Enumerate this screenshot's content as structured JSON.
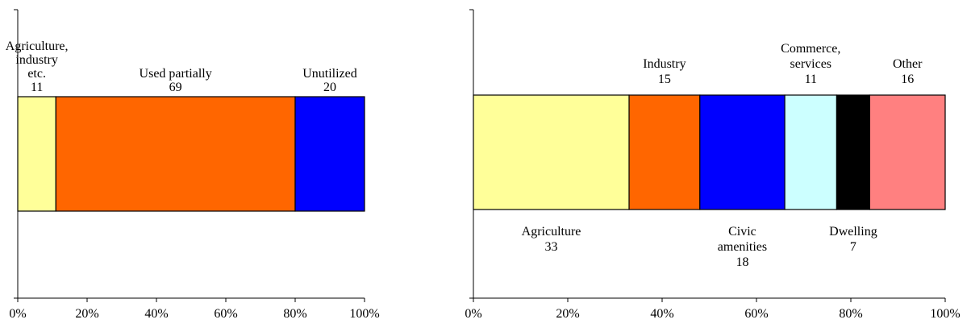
{
  "chart_data": [
    {
      "type": "bar",
      "orientation": "horizontal-stacked-100",
      "xlim": [
        0,
        100
      ],
      "xticks": [
        "0%",
        "20%",
        "40%",
        "60%",
        "80%",
        "100%"
      ],
      "segments": [
        {
          "label_lines": [
            "Agriculture,",
            "industry",
            "etc."
          ],
          "value": 11,
          "value_label": "11",
          "color": "#FFFF99",
          "label_pos": "above"
        },
        {
          "label_lines": [
            "Used partially"
          ],
          "value": 69,
          "value_label": "69",
          "color": "#FF6600",
          "label_pos": "above"
        },
        {
          "label_lines": [
            "Unutilized"
          ],
          "value": 20,
          "value_label": "20",
          "color": "#0000FF",
          "label_pos": "above"
        }
      ]
    },
    {
      "type": "bar",
      "orientation": "horizontal-stacked-100",
      "xlim": [
        0,
        100
      ],
      "xticks": [
        "0%",
        "20%",
        "40%",
        "60%",
        "80%",
        "100%"
      ],
      "segments": [
        {
          "label_lines": [
            "Agriculture"
          ],
          "value": 33,
          "value_label": "33",
          "color": "#FFFF99",
          "label_pos": "below"
        },
        {
          "label_lines": [
            "Industry"
          ],
          "value": 15,
          "value_label": "15",
          "color": "#FF6600",
          "label_pos": "above"
        },
        {
          "label_lines": [
            "Civic",
            "amenities"
          ],
          "value": 18,
          "value_label": "18",
          "color": "#0000FF",
          "label_pos": "below"
        },
        {
          "label_lines": [
            "Commerce,",
            "services"
          ],
          "value": 11,
          "value_label": "11",
          "color": "#CCFFFF",
          "label_pos": "above"
        },
        {
          "label_lines": [
            "Dwelling"
          ],
          "value": 7,
          "value_label": "7",
          "color": "#000000",
          "label_pos": "below"
        },
        {
          "label_lines": [
            "Other"
          ],
          "value": 16,
          "value_label": "16",
          "color": "#FF8080",
          "label_pos": "above"
        }
      ]
    }
  ]
}
